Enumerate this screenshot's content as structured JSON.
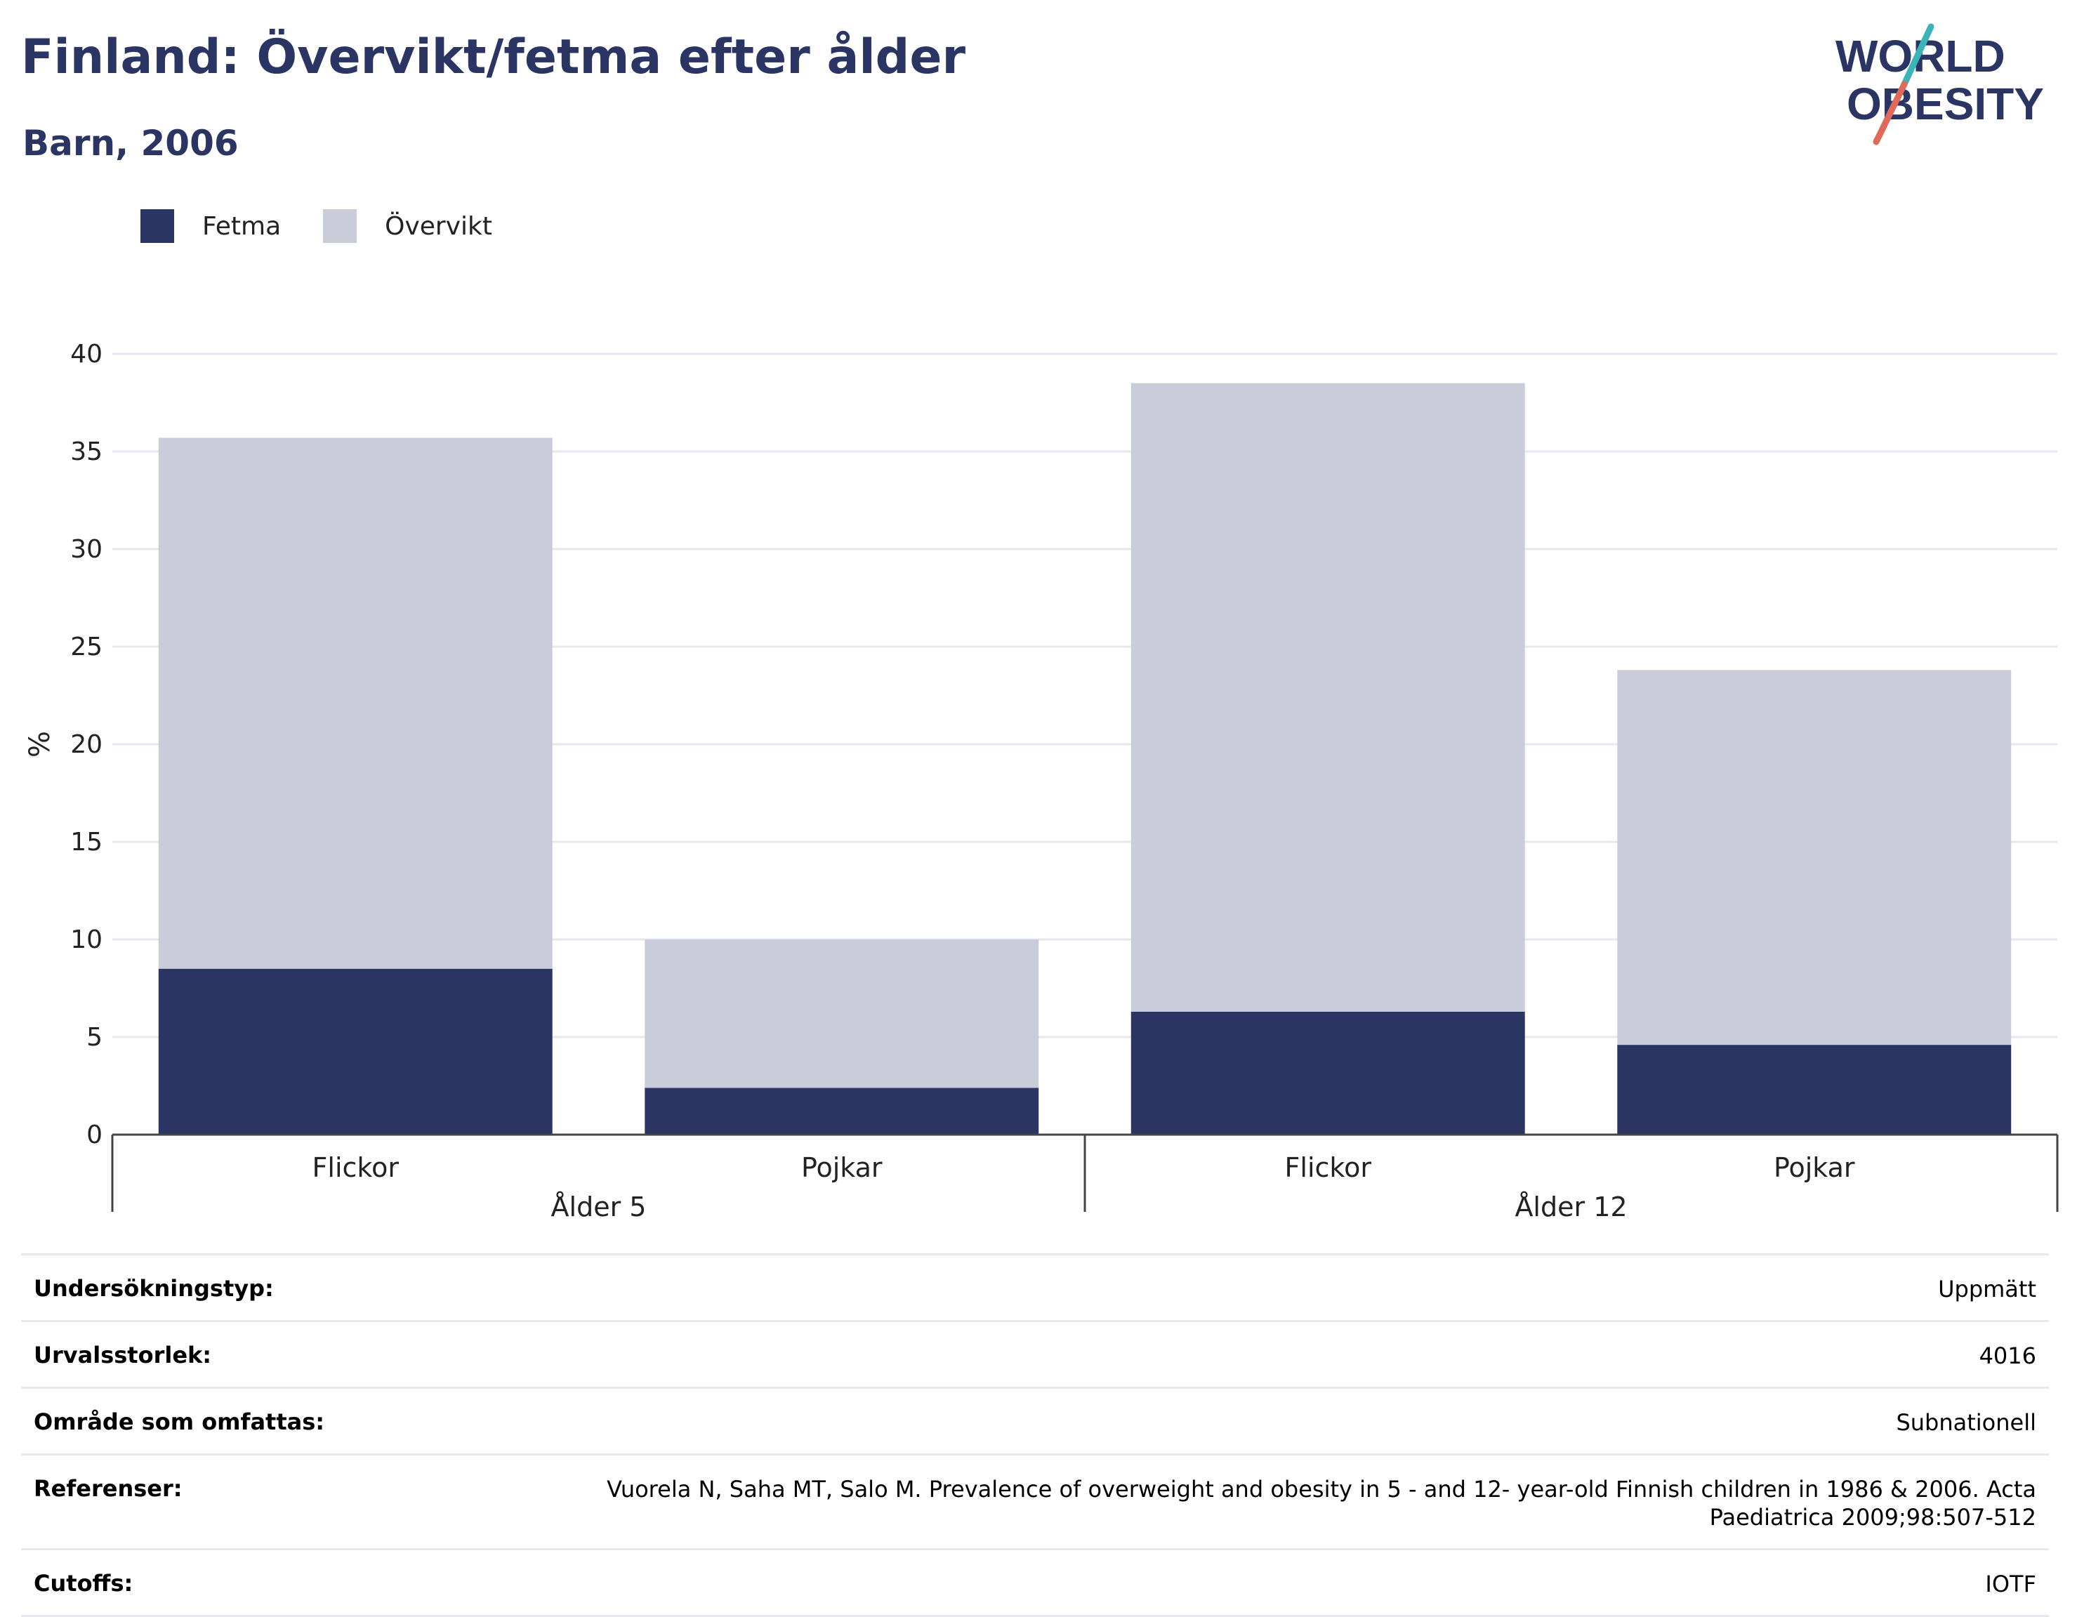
{
  "header": {
    "title": "Finland: Övervikt/fetma efter ålder",
    "subtitle": "Barn, 2006",
    "logo": {
      "line1": "WORLD",
      "line2": "OBESITY"
    }
  },
  "colors": {
    "fetma": "#2a3564",
    "overvikt": "#cacdd9",
    "title": "#2a3564",
    "logo_teal": "#3bb3b8",
    "logo_red": "#e06a5a"
  },
  "chart_data": {
    "type": "bar",
    "stacked": true,
    "ylabel": "%",
    "ylim": [
      0,
      40
    ],
    "yticks": [
      0,
      5,
      10,
      15,
      20,
      25,
      30,
      35,
      40
    ],
    "grid": true,
    "legend_position": "top-left",
    "groups": [
      {
        "label": "Ålder 5",
        "categories": [
          "Flickor",
          "Pojkar"
        ]
      },
      {
        "label": "Ålder 12",
        "categories": [
          "Flickor",
          "Pojkar"
        ]
      }
    ],
    "categories": [
      "Flickor",
      "Pojkar",
      "Flickor",
      "Pojkar"
    ],
    "series": [
      {
        "name": "Fetma",
        "values": [
          8.5,
          2.4,
          6.3,
          4.6
        ]
      },
      {
        "name": "Övervikt",
        "values": [
          27.2,
          7.6,
          32.2,
          19.2
        ]
      }
    ]
  },
  "info": [
    {
      "label": "Undersökningstyp:",
      "value": "Uppmätt"
    },
    {
      "label": "Urvalsstorlek:",
      "value": "4016"
    },
    {
      "label": "Område som omfattas:",
      "value": "Subnationell"
    },
    {
      "label": "Referenser:",
      "value": "Vuorela N, Saha MT, Salo M. Prevalence of overweight and obesity in 5 - and 12- year-old Finnish children in 1986 & 2006. Acta Paediatrica 2009;98:507-512"
    },
    {
      "label": "Cutoffs:",
      "value": "IOTF"
    }
  ]
}
